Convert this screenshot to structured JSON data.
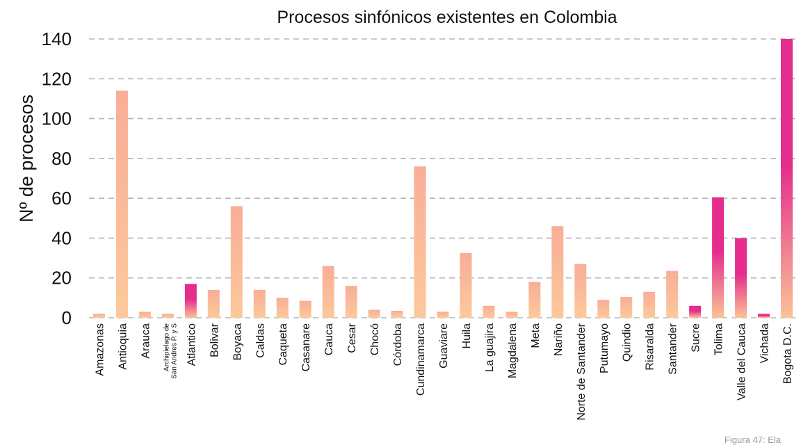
{
  "chart_data": {
    "type": "bar",
    "title": "Procesos sinfónicos existentes en Colombia",
    "xlabel": "",
    "ylabel": "Nº de procesos",
    "ylim": [
      0,
      140
    ],
    "yticks": [
      0,
      20,
      40,
      60,
      80,
      100,
      120,
      140
    ],
    "grid": true,
    "categories": [
      "Amazonas",
      "Antioquia",
      "Arauca",
      "Archipielago de San Andres P. y S",
      "Atlantico",
      "Bolivar",
      "Boyaca",
      "Caldas",
      "Caqueta",
      "Casanare",
      "Cauca",
      "Cesar",
      "Chocó",
      "Córdoba",
      "Cundinamarca",
      "Guaviare",
      "Huila",
      "La guajira",
      "Magdalena",
      "Meta",
      "Nariño",
      "Norte de Santander",
      "Putumayo",
      "Quindio",
      "Risaralda",
      "Santander",
      "Sucre",
      "Tolima",
      "Valle del Cauca",
      "Vichada",
      "Bogota D.C."
    ],
    "category_lines": {
      "3": [
        "Archipielago de",
        "San Andres P. y S"
      ]
    },
    "values": [
      2,
      114,
      3,
      2,
      17,
      14,
      56,
      14,
      10,
      8.5,
      26,
      16,
      4,
      3.5,
      76,
      3,
      32.5,
      6,
      3,
      18,
      46,
      27,
      9,
      10.5,
      13,
      23.5,
      6,
      60.5,
      40,
      2,
      140
    ],
    "colors": {
      "light_top": "#f9ad98",
      "light_bottom": "#fcc99a",
      "pink_top": "#e42d8d",
      "pink_bottom": "#fbc296"
    },
    "pink_bars": [
      4,
      26,
      27,
      28,
      29,
      30
    ]
  },
  "footnote": "Figura 47: Ela"
}
